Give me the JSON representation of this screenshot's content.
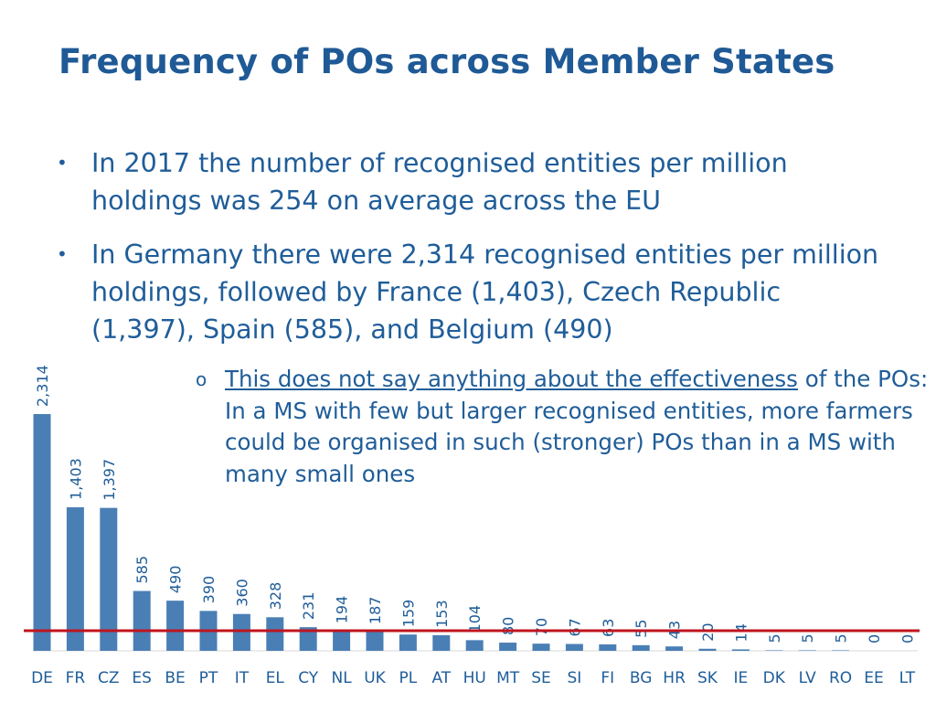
{
  "title": "Frequency of POs across Member States",
  "bullets": [
    "In 2017 the number of recognised entities per million holdings was 254 on average across the EU",
    "In Germany there were 2,314 recognised entities per million holdings, followed by France (1,403), Czech Republic (1,397), Spain (585), and Belgium (490)"
  ],
  "sub_bullet": {
    "underlined": "This does not say anything about the effectiveness",
    "rest": "of the POs: In a MS with few but larger recognised entities, more farmers could be organised in such (stronger) POs than in a MS with many small ones"
  },
  "chart_data": {
    "type": "bar",
    "categories": [
      "DE",
      "FR",
      "CZ",
      "ES",
      "BE",
      "PT",
      "IT",
      "EL",
      "CY",
      "NL",
      "UK",
      "PL",
      "AT",
      "HU",
      "MT",
      "SE",
      "SI",
      "FI",
      "BG",
      "HR",
      "SK",
      "IE",
      "DK",
      "LV",
      "RO",
      "EE",
      "LT"
    ],
    "values": [
      2314,
      1403,
      1397,
      585,
      490,
      390,
      360,
      328,
      231,
      194,
      187,
      159,
      153,
      104,
      80,
      70,
      67,
      63,
      55,
      43,
      20,
      14,
      5,
      5,
      5,
      0,
      0
    ],
    "value_labels": [
      "2,314",
      "1,403",
      "1,397",
      "585",
      "490",
      "390",
      "360",
      "328",
      "231",
      "194",
      "187",
      "159",
      "153",
      "104",
      "80",
      "70",
      "67",
      "63",
      "55",
      "43",
      "20",
      "14",
      "5",
      "5",
      "5",
      "0",
      "0"
    ],
    "reference_line": 254,
    "bar_color": "#4a7fb5",
    "reference_line_color": "#c0141e"
  }
}
